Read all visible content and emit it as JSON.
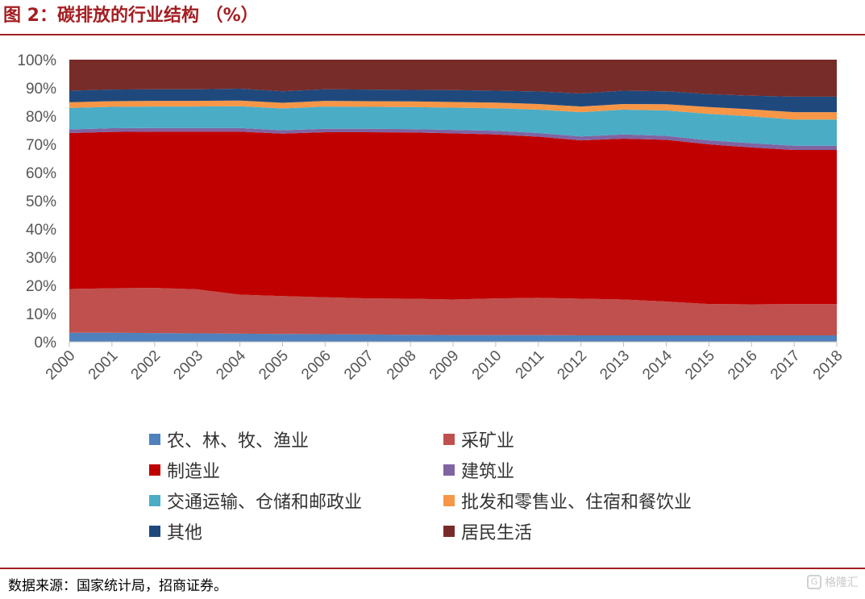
{
  "header": {
    "title": "图 2：碳排放的行业结构 （%）"
  },
  "footer": {
    "source": "数据来源：国家统计局，招商证券。",
    "watermark": "格隆汇"
  },
  "chart_data": {
    "type": "area",
    "stacked": true,
    "x": [
      "2000",
      "2001",
      "2002",
      "2003",
      "2004",
      "2005",
      "2006",
      "2007",
      "2008",
      "2009",
      "2010",
      "2011",
      "2012",
      "2013",
      "2014",
      "2015",
      "2016",
      "2017",
      "2018"
    ],
    "ylim": [
      0,
      100
    ],
    "y_ticks": [
      "0%",
      "10%",
      "20%",
      "30%",
      "40%",
      "50%",
      "60%",
      "70%",
      "80%",
      "90%",
      "100%"
    ],
    "legend_position": "bottom",
    "series": [
      {
        "name": "农、林、牧、渔业",
        "color": "#4f81bd",
        "values": [
          3.2,
          3.2,
          3.1,
          3.0,
          2.9,
          2.8,
          2.7,
          2.6,
          2.5,
          2.4,
          2.4,
          2.4,
          2.3,
          2.3,
          2.3,
          2.3,
          2.3,
          2.3,
          2.3
        ]
      },
      {
        "name": "采矿业",
        "color": "#c0504d",
        "values": [
          15.5,
          15.8,
          16.0,
          15.6,
          13.8,
          13.4,
          13.1,
          12.8,
          12.8,
          12.6,
          13.0,
          13.2,
          13.0,
          12.7,
          12.0,
          11.1,
          11.0,
          11.1,
          11.1
        ]
      },
      {
        "name": "制造业",
        "color": "#c00000",
        "values": [
          55.3,
          55.4,
          55.4,
          55.9,
          57.8,
          57.6,
          58.5,
          58.9,
          58.9,
          58.9,
          58.1,
          57.1,
          56.1,
          57.0,
          57.3,
          56.6,
          55.6,
          54.6,
          54.6
        ]
      },
      {
        "name": "建筑业",
        "color": "#8064a2",
        "values": [
          1.3,
          1.3,
          1.3,
          1.3,
          1.3,
          1.2,
          1.2,
          1.2,
          1.2,
          1.2,
          1.3,
          1.3,
          1.4,
          1.5,
          1.4,
          1.4,
          1.5,
          1.5,
          1.5
        ]
      },
      {
        "name": "交通运输、仓储和邮政业",
        "color": "#4bacc6",
        "values": [
          7.6,
          7.6,
          7.6,
          7.6,
          7.7,
          7.7,
          7.9,
          7.8,
          7.8,
          7.9,
          8.0,
          8.3,
          8.6,
          8.8,
          9.0,
          9.4,
          9.5,
          9.3,
          9.3
        ]
      },
      {
        "name": "批发和零售业、住宿和餐饮业",
        "color": "#f79646",
        "values": [
          2.0,
          2.0,
          2.0,
          2.0,
          2.0,
          2.0,
          2.0,
          2.0,
          2.0,
          2.0,
          2.0,
          2.0,
          2.0,
          2.0,
          2.2,
          2.4,
          2.5,
          2.6,
          2.6
        ]
      },
      {
        "name": "其他",
        "color": "#1f497d",
        "values": [
          4.1,
          4.1,
          4.1,
          4.1,
          4.2,
          4.1,
          4.1,
          4.1,
          4.1,
          4.2,
          4.2,
          4.4,
          4.6,
          4.7,
          4.6,
          4.6,
          4.8,
          5.5,
          5.5
        ]
      },
      {
        "name": "居民生活",
        "color": "#772c2a",
        "values": [
          11.0,
          10.6,
          10.5,
          10.5,
          10.3,
          11.2,
          10.5,
          10.6,
          10.7,
          10.8,
          11.0,
          11.3,
          12.0,
          11.0,
          11.2,
          12.2,
          12.8,
          13.1,
          13.1
        ]
      }
    ]
  }
}
